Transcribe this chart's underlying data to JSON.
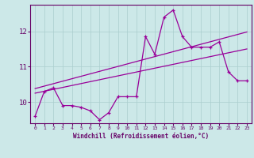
{
  "x_values": [
    0,
    1,
    2,
    3,
    4,
    5,
    6,
    7,
    8,
    9,
    10,
    11,
    12,
    13,
    14,
    15,
    16,
    17,
    18,
    19,
    20,
    21,
    22,
    23
  ],
  "main_line": [
    9.6,
    10.3,
    10.4,
    9.9,
    9.9,
    9.85,
    9.75,
    9.5,
    9.7,
    10.15,
    10.15,
    10.15,
    11.85,
    11.35,
    12.4,
    12.6,
    11.85,
    11.55,
    11.55,
    11.55,
    11.7,
    10.85,
    10.6,
    10.6
  ],
  "upper_line_y": [
    10.38,
    11.98
  ],
  "upper_line_x": [
    0,
    23
  ],
  "lower_line_y": [
    10.25,
    11.5
  ],
  "lower_line_x": [
    0,
    23
  ],
  "line_color": "#990099",
  "bg_color": "#cce8e8",
  "grid_color": "#aacece",
  "axis_color": "#660066",
  "xlabel": "Windchill (Refroidissement éolien,°C)",
  "ylim": [
    9.4,
    12.75
  ],
  "xlim": [
    -0.5,
    23.5
  ],
  "yticks": [
    10,
    11,
    12
  ],
  "xticks": [
    0,
    1,
    2,
    3,
    4,
    5,
    6,
    7,
    8,
    9,
    10,
    11,
    12,
    13,
    14,
    15,
    16,
    17,
    18,
    19,
    20,
    21,
    22,
    23
  ]
}
